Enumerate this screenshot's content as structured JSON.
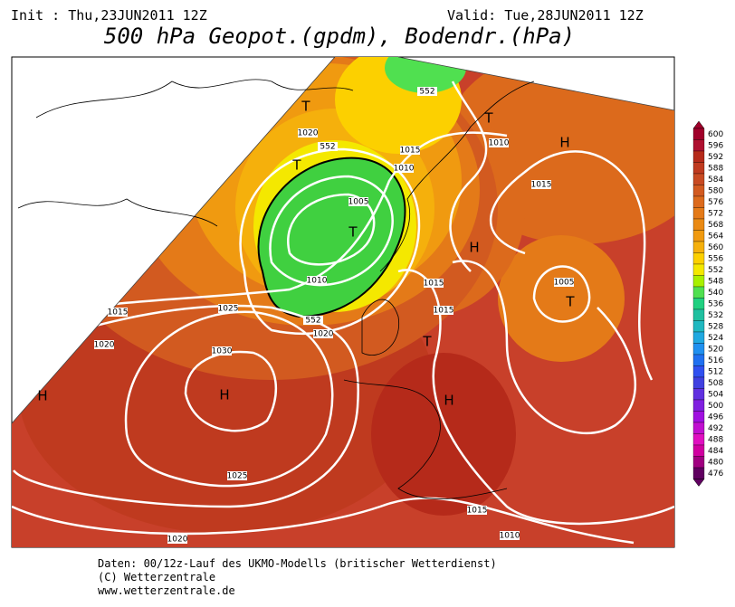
{
  "header": {
    "init": "Init : Thu,23JUN2011 12Z",
    "valid": "Valid: Tue,28JUN2011 12Z",
    "title": "500 hPa Geopot.(gpdm), Bodendr.(hPa)"
  },
  "contour_labels": [
    1020,
    552,
    1015,
    1010,
    1005,
    1010,
    552,
    1020,
    1015,
    1015,
    1015,
    1025,
    1020,
    1030,
    1025,
    1020,
    1015,
    1010,
    1010,
    1015,
    1005,
    552
  ],
  "pressure_centers": [
    "T",
    "T",
    "T",
    "T",
    "H",
    "H",
    "T",
    "T",
    "H",
    "H",
    "H"
  ],
  "colorbar": [
    {
      "label": 600,
      "color": "#a0002a"
    },
    {
      "label": 596,
      "color": "#ae1030"
    },
    {
      "label": 592,
      "color": "#b52a1a"
    },
    {
      "label": 588,
      "color": "#bf3a1f"
    },
    {
      "label": 584,
      "color": "#c84a22"
    },
    {
      "label": 580,
      "color": "#d25a20"
    },
    {
      "label": 576,
      "color": "#dc6a1c"
    },
    {
      "label": 572,
      "color": "#e47a18"
    },
    {
      "label": 568,
      "color": "#ea8a14"
    },
    {
      "label": 564,
      "color": "#f09a10"
    },
    {
      "label": 560,
      "color": "#f5b00c"
    },
    {
      "label": 556,
      "color": "#fcd000"
    },
    {
      "label": 552,
      "color": "#f4e800"
    },
    {
      "label": 548,
      "color": "#a8f000"
    },
    {
      "label": 540,
      "color": "#50e050"
    },
    {
      "label": 536,
      "color": "#20d080"
    },
    {
      "label": 532,
      "color": "#20c0a0"
    },
    {
      "label": 528,
      "color": "#20b8c0"
    },
    {
      "label": 524,
      "color": "#20a8e0"
    },
    {
      "label": 520,
      "color": "#2090f0"
    },
    {
      "label": 516,
      "color": "#2070f0"
    },
    {
      "label": 512,
      "color": "#3050f0"
    },
    {
      "label": 508,
      "color": "#4040e0"
    },
    {
      "label": 504,
      "color": "#6030e0"
    },
    {
      "label": 500,
      "color": "#8020e0"
    },
    {
      "label": 496,
      "color": "#a010e0"
    },
    {
      "label": 492,
      "color": "#c010d0"
    },
    {
      "label": 488,
      "color": "#e010c0"
    },
    {
      "label": 484,
      "color": "#d000a0"
    },
    {
      "label": 480,
      "color": "#a00080"
    },
    {
      "label": 476,
      "color": "#600060"
    }
  ],
  "footer": [
    "Daten: 00/12z-Lauf des UKMO-Modells (britischer Wetterdienst)",
    "(C) Wetterzentrale",
    "www.wetterzentrale.de"
  ]
}
